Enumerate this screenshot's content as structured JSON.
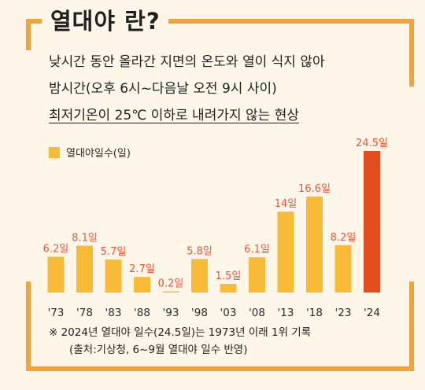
{
  "header": {
    "title": "열대야 란?"
  },
  "description": {
    "line1": "낮시간 동안 올라간 지면의 온도와 열이 식지 않아",
    "line2": "밤시간(오후 6시~다음날 오전 9시 사이)",
    "line3": "최저기온이 25℃ 이하로 내려가지 않는 현상"
  },
  "notes": {
    "line1": "※ 2024년 열대야 일수(24.5일)는 1973년 이래 1위 기록",
    "line2": "(출처:기상청, 6~9월 열대야 일수 반영)"
  },
  "colors": {
    "bar": "#f8bb37",
    "highlight_bar": "#e24d1f",
    "label": "#e8563a",
    "frame": "#f0a33f"
  },
  "chart_data": {
    "type": "bar",
    "categories": [
      "'73",
      "'78",
      "'83",
      "'88",
      "'93",
      "'98",
      "'03",
      "'08",
      "'13",
      "'18",
      "'23",
      "'24"
    ],
    "series": [
      {
        "name": "열대야일수(일)",
        "values": [
          6.2,
          8.1,
          5.7,
          2.7,
          0.2,
          5.8,
          1.5,
          6.1,
          14,
          16.6,
          8.2,
          24.5
        ]
      }
    ],
    "value_labels": [
      "6.2일",
      "8.1일",
      "5.7일",
      "2.7일",
      "0.2일",
      "5.8일",
      "1.5일",
      "6.1일",
      "14일",
      "16.6일",
      "8.2일",
      "24.5일"
    ],
    "highlight_index": 11,
    "ylim": [
      0,
      24.5
    ],
    "legend": "top-left",
    "grid": false
  }
}
